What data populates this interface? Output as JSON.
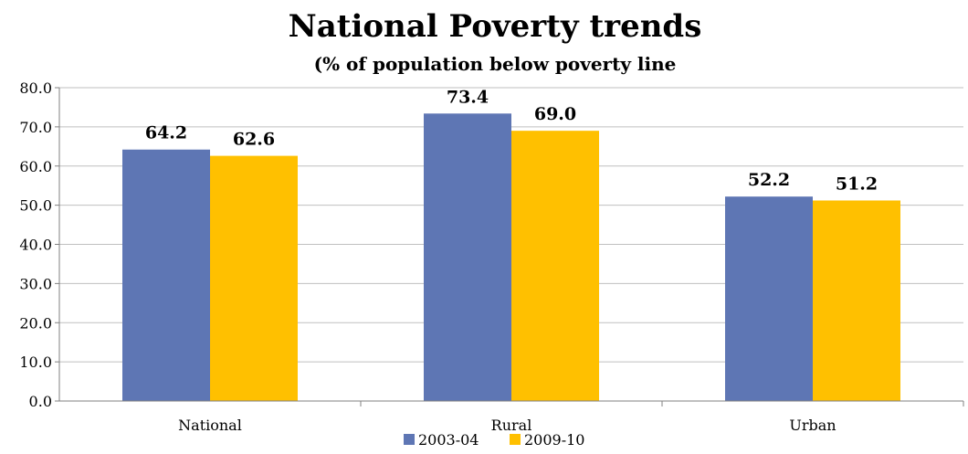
{
  "chart_data": {
    "type": "bar",
    "title": "National Poverty trends",
    "subtitle": "(% of population below poverty line",
    "categories": [
      "National",
      "Rural",
      "Urban"
    ],
    "series": [
      {
        "name": "2003-04",
        "values": [
          64.2,
          73.4,
          52.2
        ],
        "color": "#5E76B4"
      },
      {
        "name": "2009-10",
        "values": [
          62.6,
          69.0,
          51.2
        ],
        "color": "#FFC000"
      }
    ],
    "ylim": [
      0,
      80
    ],
    "yticks": [
      "0.0",
      "10.0",
      "20.0",
      "30.0",
      "40.0",
      "50.0",
      "60.0",
      "70.0",
      "80.0"
    ],
    "grid": true,
    "legend": "bottom",
    "gridColor": "#BFBFBF",
    "axisColor": "#808080"
  }
}
